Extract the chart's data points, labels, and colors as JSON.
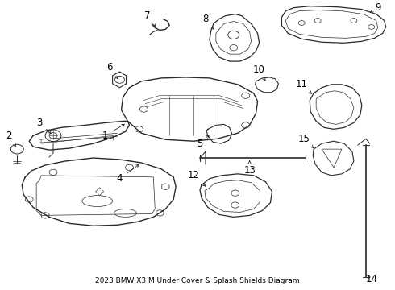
{
  "title": "2023 BMW X3 M Under Cover & Splash Shields Diagram",
  "bg_color": "#ffffff",
  "line_color": "#2a2a2a",
  "label_color": "#000000",
  "label_fontsize": 8.5,
  "title_fontsize": 6.5,
  "figsize": [
    4.9,
    3.6
  ],
  "dpi": 100
}
